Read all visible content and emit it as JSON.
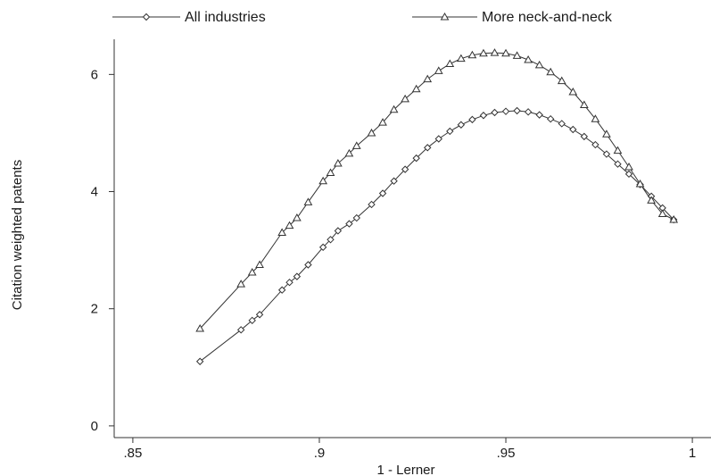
{
  "chart_data": {
    "type": "line",
    "xlabel": "1 - Lerner",
    "ylabel": "Citation weighted patents",
    "xlim": [
      0.845,
      1.005
    ],
    "ylim": [
      -0.2,
      6.6
    ],
    "x_ticks": [
      {
        "value": 0.85,
        "label": ".85"
      },
      {
        "value": 0.9,
        "label": ".9"
      },
      {
        "value": 0.95,
        "label": ".95"
      },
      {
        "value": 1.0,
        "label": "1"
      }
    ],
    "y_ticks": [
      {
        "value": 0,
        "label": "0"
      },
      {
        "value": 2,
        "label": "2"
      },
      {
        "value": 4,
        "label": "4"
      },
      {
        "value": 6,
        "label": "6"
      }
    ],
    "grid": false,
    "legend_position": "top",
    "series": [
      {
        "name": "All industries",
        "marker": "diamond",
        "color": "#333333",
        "x": [
          0.868,
          0.879,
          0.882,
          0.884,
          0.89,
          0.892,
          0.894,
          0.897,
          0.901,
          0.903,
          0.905,
          0.908,
          0.91,
          0.914,
          0.917,
          0.92,
          0.923,
          0.926,
          0.929,
          0.932,
          0.935,
          0.938,
          0.941,
          0.944,
          0.947,
          0.95,
          0.953,
          0.956,
          0.959,
          0.962,
          0.965,
          0.968,
          0.971,
          0.974,
          0.977,
          0.98,
          0.983,
          0.986,
          0.989,
          0.992,
          0.995
        ],
        "y": [
          1.1,
          1.64,
          1.8,
          1.9,
          2.32,
          2.45,
          2.55,
          2.75,
          3.05,
          3.18,
          3.33,
          3.45,
          3.55,
          3.78,
          3.97,
          4.18,
          4.38,
          4.57,
          4.75,
          4.9,
          5.03,
          5.14,
          5.23,
          5.3,
          5.35,
          5.37,
          5.38,
          5.36,
          5.31,
          5.24,
          5.16,
          5.06,
          4.94,
          4.8,
          4.64,
          4.47,
          4.3,
          4.12,
          3.92,
          3.72,
          3.52
        ]
      },
      {
        "name": "More neck-and-neck",
        "marker": "triangle",
        "color": "#333333",
        "x": [
          0.868,
          0.879,
          0.882,
          0.884,
          0.89,
          0.892,
          0.894,
          0.897,
          0.901,
          0.903,
          0.905,
          0.908,
          0.91,
          0.914,
          0.917,
          0.92,
          0.923,
          0.926,
          0.929,
          0.932,
          0.935,
          0.938,
          0.941,
          0.944,
          0.947,
          0.95,
          0.953,
          0.956,
          0.959,
          0.962,
          0.965,
          0.968,
          0.971,
          0.974,
          0.977,
          0.98,
          0.983,
          0.986,
          0.989,
          0.992,
          0.995
        ],
        "y": [
          1.66,
          2.42,
          2.62,
          2.75,
          3.3,
          3.42,
          3.55,
          3.82,
          4.18,
          4.32,
          4.48,
          4.65,
          4.78,
          5.0,
          5.18,
          5.4,
          5.58,
          5.75,
          5.92,
          6.06,
          6.18,
          6.27,
          6.33,
          6.36,
          6.37,
          6.36,
          6.32,
          6.25,
          6.16,
          6.04,
          5.89,
          5.7,
          5.48,
          5.24,
          4.98,
          4.7,
          4.42,
          4.13,
          3.85,
          3.62,
          3.52
        ]
      }
    ]
  }
}
